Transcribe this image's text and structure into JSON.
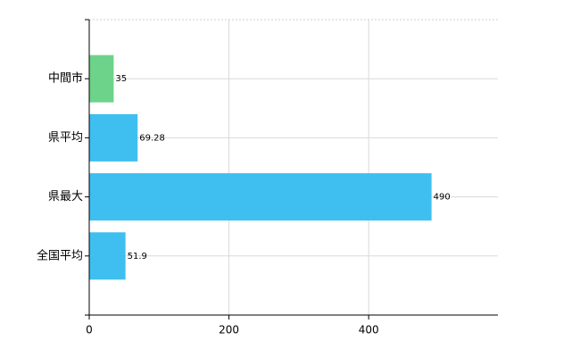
{
  "chart_data": {
    "type": "bar",
    "orientation": "horizontal",
    "categories": [
      "中間市",
      "県平均",
      "県最大",
      "全国平均"
    ],
    "values": [
      35,
      69.28,
      490,
      51.9
    ],
    "colors": [
      "#6dd38a",
      "#3ebff0",
      "#3ebff0",
      "#3ebff0"
    ],
    "xlim": [
      0,
      585
    ],
    "xticks": [
      0,
      200,
      400
    ],
    "grid": true
  }
}
